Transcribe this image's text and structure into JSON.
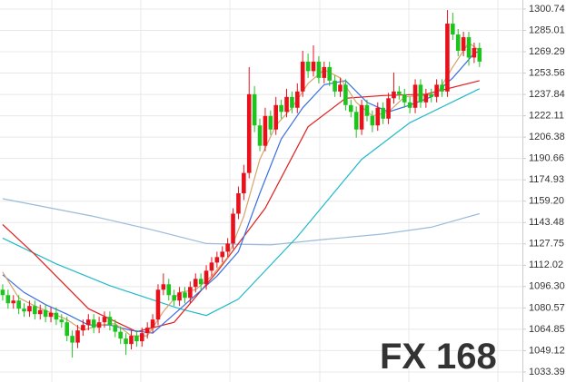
{
  "chart_data": {
    "type": "candlestick",
    "up_color": "#e8111b",
    "down_color": "#1ec41e",
    "grid": true,
    "ylim": [
      1026.0,
      1307.4
    ],
    "xlim": [
      -0.5,
      97
    ],
    "yticks": [
      1033.39,
      1049.12,
      1064.85,
      1080.57,
      {
        "value": 1096.3,
        "label": "1096.30"
      },
      1112.02,
      1127.75,
      1143.48,
      {
        "value": 1159.2,
        "label": "1159.20"
      },
      1174.93,
      1190.66,
      1206.38,
      1222.11,
      1237.84,
      1253.56,
      1269.29,
      1285.01,
      1300.74
    ],
    "open": [
      1094,
      1090,
      1084,
      1086,
      1080,
      1078,
      1082,
      1076,
      1079,
      1074,
      1077,
      1072,
      1070,
      1060,
      1055,
      1064,
      1068,
      1072,
      1066,
      1070,
      1074,
      1068,
      1063,
      1058,
      1054,
      1060,
      1056,
      1062,
      1066,
      1072,
      1094,
      1098,
      1090,
      1086,
      1092,
      1088,
      1096,
      1102,
      1098,
      1108,
      1114,
      1118,
      1122,
      1128,
      1150,
      1165,
      1180,
      1238,
      1215,
      1200,
      1222,
      1212,
      1230,
      1225,
      1236,
      1228,
      1240,
      1262,
      1255,
      1262,
      1250,
      1258,
      1248,
      1240,
      1245,
      1230,
      1225,
      1212,
      1230,
      1222,
      1215,
      1228,
      1220,
      1235,
      1240,
      1238,
      1232,
      1228,
      1245,
      1232,
      1238,
      1236,
      1245,
      1240,
      1290,
      1282,
      1270,
      1280,
      1265,
      1272
    ],
    "high": [
      1098,
      1094,
      1090,
      1090,
      1084,
      1086,
      1086,
      1083,
      1083,
      1081,
      1081,
      1076,
      1074,
      1064,
      1068,
      1072,
      1076,
      1076,
      1074,
      1078,
      1078,
      1072,
      1067,
      1062,
      1064,
      1064,
      1066,
      1070,
      1076,
      1098,
      1106,
      1102,
      1094,
      1096,
      1096,
      1100,
      1106,
      1106,
      1112,
      1118,
      1122,
      1126,
      1132,
      1154,
      1170,
      1186,
      1258,
      1244,
      1220,
      1228,
      1226,
      1236,
      1234,
      1242,
      1240,
      1246,
      1270,
      1268,
      1274,
      1266,
      1262,
      1262,
      1252,
      1250,
      1249,
      1234,
      1229,
      1234,
      1234,
      1226,
      1232,
      1232,
      1239,
      1254,
      1244,
      1242,
      1236,
      1249,
      1249,
      1242,
      1242,
      1249,
      1249,
      1300,
      1298,
      1286,
      1284,
      1284,
      1276,
      1276
    ],
    "low": [
      1086,
      1080,
      1080,
      1076,
      1074,
      1074,
      1072,
      1072,
      1070,
      1070,
      1068,
      1066,
      1056,
      1044,
      1051,
      1060,
      1064,
      1062,
      1062,
      1066,
      1064,
      1059,
      1054,
      1046,
      1050,
      1052,
      1052,
      1058,
      1062,
      1068,
      1090,
      1086,
      1082,
      1082,
      1084,
      1084,
      1092,
      1094,
      1094,
      1104,
      1110,
      1114,
      1118,
      1124,
      1146,
      1160,
      1176,
      1210,
      1196,
      1196,
      1208,
      1208,
      1220,
      1221,
      1224,
      1224,
      1236,
      1250,
      1251,
      1246,
      1246,
      1244,
      1236,
      1236,
      1226,
      1221,
      1206,
      1208,
      1218,
      1210,
      1211,
      1216,
      1216,
      1231,
      1234,
      1228,
      1224,
      1224,
      1228,
      1228,
      1232,
      1232,
      1236,
      1236,
      1278,
      1266,
      1266,
      1259,
      1261,
      1258
    ],
    "close": [
      1090,
      1084,
      1086,
      1080,
      1078,
      1082,
      1076,
      1079,
      1074,
      1077,
      1072,
      1070,
      1060,
      1055,
      1064,
      1068,
      1072,
      1066,
      1070,
      1074,
      1068,
      1063,
      1058,
      1054,
      1060,
      1056,
      1062,
      1066,
      1072,
      1094,
      1098,
      1090,
      1086,
      1092,
      1088,
      1096,
      1102,
      1098,
      1108,
      1114,
      1118,
      1122,
      1128,
      1150,
      1165,
      1180,
      1238,
      1215,
      1200,
      1222,
      1212,
      1230,
      1225,
      1236,
      1228,
      1240,
      1262,
      1255,
      1262,
      1250,
      1258,
      1248,
      1240,
      1245,
      1230,
      1225,
      1212,
      1230,
      1222,
      1215,
      1228,
      1220,
      1235,
      1240,
      1238,
      1232,
      1228,
      1245,
      1232,
      1238,
      1236,
      1245,
      1240,
      1290,
      1282,
      1270,
      1280,
      1265,
      1272,
      1262
    ],
    "lines": [
      {
        "color": "#9bbbd9",
        "x": [
          0,
          17,
          28,
          38,
          50,
          60,
          71,
          80,
          89
        ],
        "values": [
          1161,
          1148,
          1138,
          1128,
          1127,
          1131,
          1135,
          1140,
          1150
        ]
      },
      {
        "color": "#22b9c9",
        "x": [
          0,
          10,
          20,
          33,
          38,
          44,
          55,
          67,
          76,
          89
        ],
        "values": [
          1132,
          1113,
          1097,
          1080,
          1075,
          1087,
          1133,
          1190,
          1217,
          1242
        ]
      },
      {
        "color": "#e01f1f",
        "x": [
          0,
          6,
          16,
          25,
          32,
          40,
          49,
          57,
          64,
          71,
          79,
          89
        ],
        "values": [
          1142,
          1120,
          1080,
          1063,
          1070,
          1107,
          1154,
          1214,
          1235,
          1237,
          1238,
          1248
        ]
      },
      {
        "color": "#3a6fe0",
        "x": [
          0,
          4,
          8,
          12,
          16,
          20,
          24,
          28,
          32,
          36,
          40,
          44,
          48,
          52,
          56,
          60,
          64,
          68,
          72,
          76,
          80,
          84,
          88,
          89
        ],
        "values": [
          1105,
          1092,
          1083,
          1076,
          1068,
          1068,
          1064,
          1062,
          1076,
          1090,
          1104,
          1122,
          1165,
          1205,
          1228,
          1245,
          1248,
          1232,
          1225,
          1230,
          1236,
          1250,
          1268,
          1270
        ]
      },
      {
        "color": "#d6a46e",
        "x": [
          0,
          3,
          6,
          9,
          12,
          15,
          18,
          21,
          24,
          27,
          30,
          33,
          36,
          39,
          42,
          45,
          48,
          51,
          54,
          57,
          60,
          63,
          66,
          69,
          72,
          75,
          78,
          81,
          84,
          87,
          89
        ],
        "values": [
          1107,
          1088,
          1082,
          1077,
          1072,
          1064,
          1068,
          1069,
          1060,
          1060,
          1078,
          1092,
          1094,
          1104,
          1118,
          1148,
          1190,
          1215,
          1228,
          1246,
          1256,
          1250,
          1232,
          1222,
          1225,
          1236,
          1237,
          1238,
          1258,
          1276,
          1270
        ]
      }
    ],
    "watermark": {
      "left": "FX",
      "right": "168"
    }
  }
}
